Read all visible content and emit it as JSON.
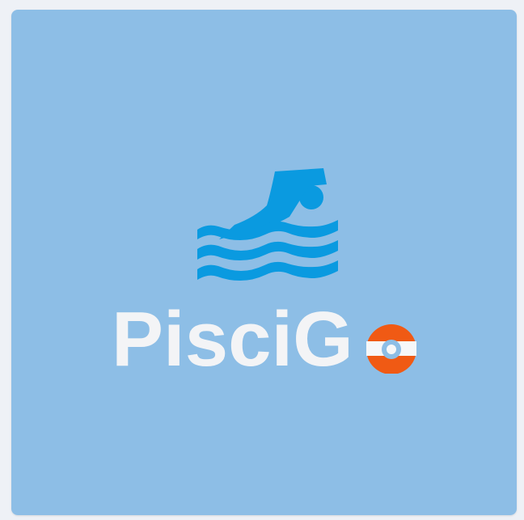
{
  "logo": {
    "wordmark": "PisciGo",
    "icon": "swimmer-icon",
    "ring_icon": "life-ring-icon"
  },
  "colors": {
    "background": "#8dbee6",
    "swimmer_blue": "#0a9ae0",
    "wordmark_white": "#f3f4f6",
    "life_ring_orange": "#f05a14",
    "life_ring_white": "#f6f7f8",
    "life_ring_center": "#8dbee6"
  }
}
